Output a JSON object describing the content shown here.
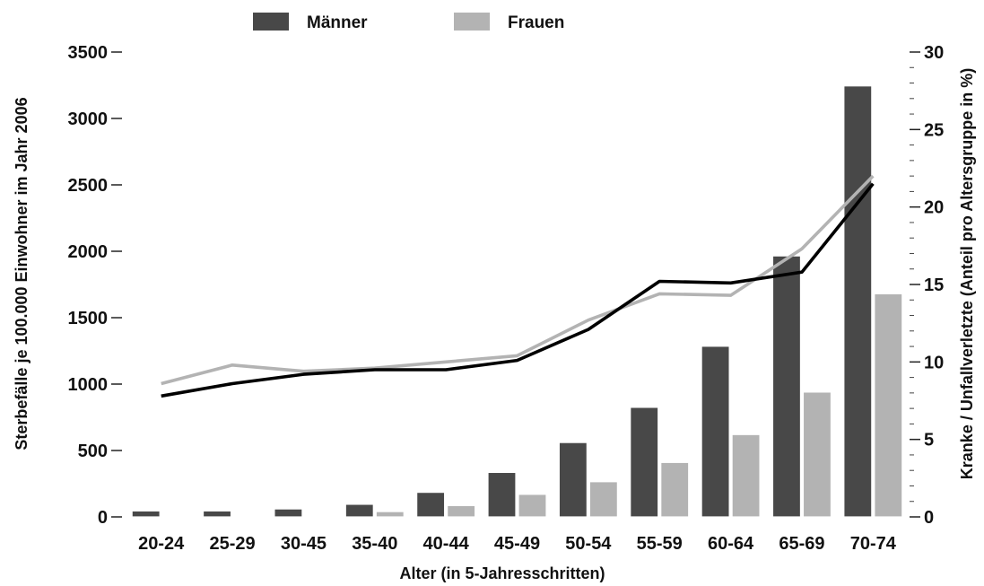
{
  "chart_data": {
    "type": "bar",
    "categories": [
      "20-24",
      "25-29",
      "30-45",
      "35-40",
      "40-44",
      "45-49",
      "50-54",
      "55-59",
      "60-64",
      "65-69",
      "70-74"
    ],
    "xlabel": "Alter (in 5-Jahresschritten)",
    "ylabel": "Sterbefälle je  100.000 Einwohner im Jahr 2006",
    "y2label": "Kranke / Unfallverletzte (Anteil pro Altersgruppe in %)",
    "ylim": [
      0,
      3500
    ],
    "y2lim": [
      0,
      30
    ],
    "yticks": [
      0,
      500,
      1000,
      1500,
      2000,
      2500,
      3000,
      3500
    ],
    "y2ticks": [
      0,
      5,
      10,
      15,
      20,
      25,
      30
    ],
    "legend_position": "top",
    "grid": false,
    "series": [
      {
        "name": "Männer",
        "kind": "bar",
        "axis": "left",
        "color": "#484848",
        "values": [
          45,
          45,
          60,
          95,
          185,
          335,
          560,
          825,
          1285,
          1965,
          3245
        ]
      },
      {
        "name": "Frauen",
        "kind": "bar",
        "axis": "left",
        "color": "#b3b3b3",
        "values": [
          0,
          0,
          0,
          40,
          85,
          170,
          265,
          410,
          620,
          940,
          1680
        ]
      },
      {
        "kind": "line",
        "axis": "right",
        "color": "#000000",
        "values": [
          7.8,
          8.6,
          9.2,
          9.5,
          9.5,
          10.1,
          12.1,
          15.2,
          15.1,
          15.8,
          21.5
        ]
      },
      {
        "kind": "line",
        "axis": "right",
        "color": "#b3b3b3",
        "values": [
          8.6,
          9.8,
          9.4,
          9.6,
          10.0,
          10.4,
          12.7,
          14.4,
          14.3,
          17.3,
          22.0
        ]
      }
    ]
  }
}
